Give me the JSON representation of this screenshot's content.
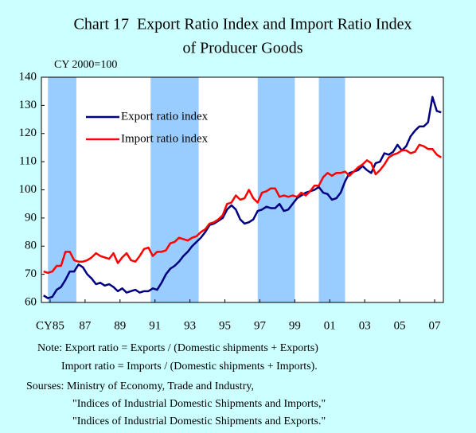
{
  "chart_data": {
    "type": "line",
    "title": [
      "Chart 17  Export Ratio Index and Import Ratio Index",
      "of Producer Goods"
    ],
    "subtitle": "CY 2000=100",
    "x": [
      1985.125,
      1985.375,
      1985.625,
      1985.875,
      1986.125,
      1986.375,
      1986.625,
      1986.875,
      1987.125,
      1987.375,
      1987.625,
      1987.875,
      1988.125,
      1988.375,
      1988.625,
      1988.875,
      1989.125,
      1989.375,
      1989.625,
      1989.875,
      1990.125,
      1990.375,
      1990.625,
      1990.875,
      1991.125,
      1991.375,
      1991.625,
      1991.875,
      1992.125,
      1992.375,
      1992.625,
      1992.875,
      1993.125,
      1993.375,
      1993.625,
      1993.875,
      1994.125,
      1994.375,
      1994.625,
      1994.875,
      1995.125,
      1995.375,
      1995.625,
      1995.875,
      1996.125,
      1996.375,
      1996.625,
      1996.875,
      1997.125,
      1997.375,
      1997.625,
      1997.875,
      1998.125,
      1998.375,
      1998.625,
      1998.875,
      1999.125,
      1999.375,
      1999.625,
      1999.875,
      2000.125,
      2000.375,
      2000.625,
      2000.875,
      2001.125,
      2001.375,
      2001.625,
      2001.875,
      2002.125,
      2002.375,
      2002.625,
      2002.875,
      2003.125,
      2003.375,
      2003.625,
      2003.875,
      2004.125,
      2004.375,
      2004.625,
      2004.875,
      2005.125,
      2005.375,
      2005.625,
      2005.875,
      2006.125,
      2006.375,
      2006.625,
      2006.875,
      2007.125,
      2007.375,
      2007.625,
      2007.875
    ],
    "series": [
      {
        "name": "Export ratio index",
        "color": "#000080",
        "values": [
          62.5,
          61.5,
          62,
          64.5,
          65.5,
          68,
          71,
          71,
          73.5,
          72.5,
          70,
          68.5,
          66.5,
          67,
          66,
          66.5,
          65.5,
          64,
          65,
          63.5,
          64,
          64.5,
          63.5,
          64,
          64,
          65,
          64.5,
          67,
          70,
          72,
          73,
          74.5,
          76.5,
          78,
          80,
          81.5,
          83,
          85,
          87.5,
          88,
          89,
          90,
          93,
          94.5,
          93,
          89.5,
          88,
          88.5,
          89.5,
          92.5,
          93,
          94,
          93.5,
          93.5,
          95,
          92.5,
          93,
          95,
          97,
          98,
          99,
          99.5,
          100,
          101,
          99,
          98.5,
          96.5,
          97,
          99,
          103,
          106,
          106.5,
          107,
          108.5,
          107,
          106,
          109.5,
          110,
          113,
          112.5,
          113.5,
          116,
          114,
          115.5,
          119,
          121,
          122.5,
          122.5,
          124,
          133,
          128,
          127.5
        ]
      },
      {
        "name": "Import ratio index",
        "color": "#ff0000",
        "values": [
          71,
          70.5,
          71,
          73,
          73,
          78,
          78,
          75,
          74.5,
          74.5,
          75,
          76,
          77.5,
          76.5,
          76,
          75.5,
          77.5,
          74,
          76,
          77.5,
          75,
          74.5,
          76.5,
          79,
          79.5,
          76.5,
          78,
          78,
          78.5,
          81,
          81.5,
          83,
          82.5,
          82,
          83,
          83.5,
          85,
          86,
          88,
          88.5,
          89.5,
          91,
          95,
          95.5,
          98,
          96.5,
          97,
          100,
          97,
          95.5,
          99,
          99.5,
          100.5,
          100.5,
          97.5,
          98,
          97.5,
          98,
          97.5,
          99,
          98,
          99.5,
          101.5,
          101.5,
          104.5,
          106,
          105,
          106,
          106,
          106.5,
          105,
          106.5,
          108,
          109,
          110.5,
          109.5,
          105.5,
          107,
          109,
          111.5,
          112.5,
          113,
          114,
          114,
          113,
          113.5,
          116,
          115.5,
          114.5,
          114.5,
          112.5,
          111.5
        ]
      }
    ],
    "bands": [
      [
        1985.375,
        1987.0
      ],
      [
        1991.25,
        1994.0
      ],
      [
        1997.375,
        1999.5
      ],
      [
        2000.875,
        2002.375
      ]
    ],
    "band_color": "#99ccff",
    "xlim": [
      1985,
      2008
    ],
    "xticks": [
      {
        "value": 1985.5,
        "label": "CY85"
      },
      1987.5,
      1989.5,
      1991.5,
      1993.5,
      1995.5,
      1997.5,
      1999.5,
      2001.5,
      2003.5,
      2005.5,
      2007.5
    ],
    "xtick_labels": [
      "CY85",
      "87",
      "89",
      "91",
      "93",
      "95",
      "97",
      "99",
      "01",
      "03",
      "05",
      "07"
    ],
    "ylim": [
      60,
      140
    ],
    "yticks": [
      60,
      70,
      80,
      90,
      100,
      110,
      120,
      130,
      140
    ],
    "legend": "upper left",
    "notes": [
      "Note: Export ratio = Exports / (Domestic shipments + Exports)",
      "Import ratio = Imports / (Domestic shipments + Imports).",
      "Sourses: Ministry of Economy, Trade and Industry,",
      "\"Indices of Industrial Domestic Shipments and Imports,\"",
      "\"Indices of Industrial Domestic Shipments and Exports.\""
    ]
  }
}
